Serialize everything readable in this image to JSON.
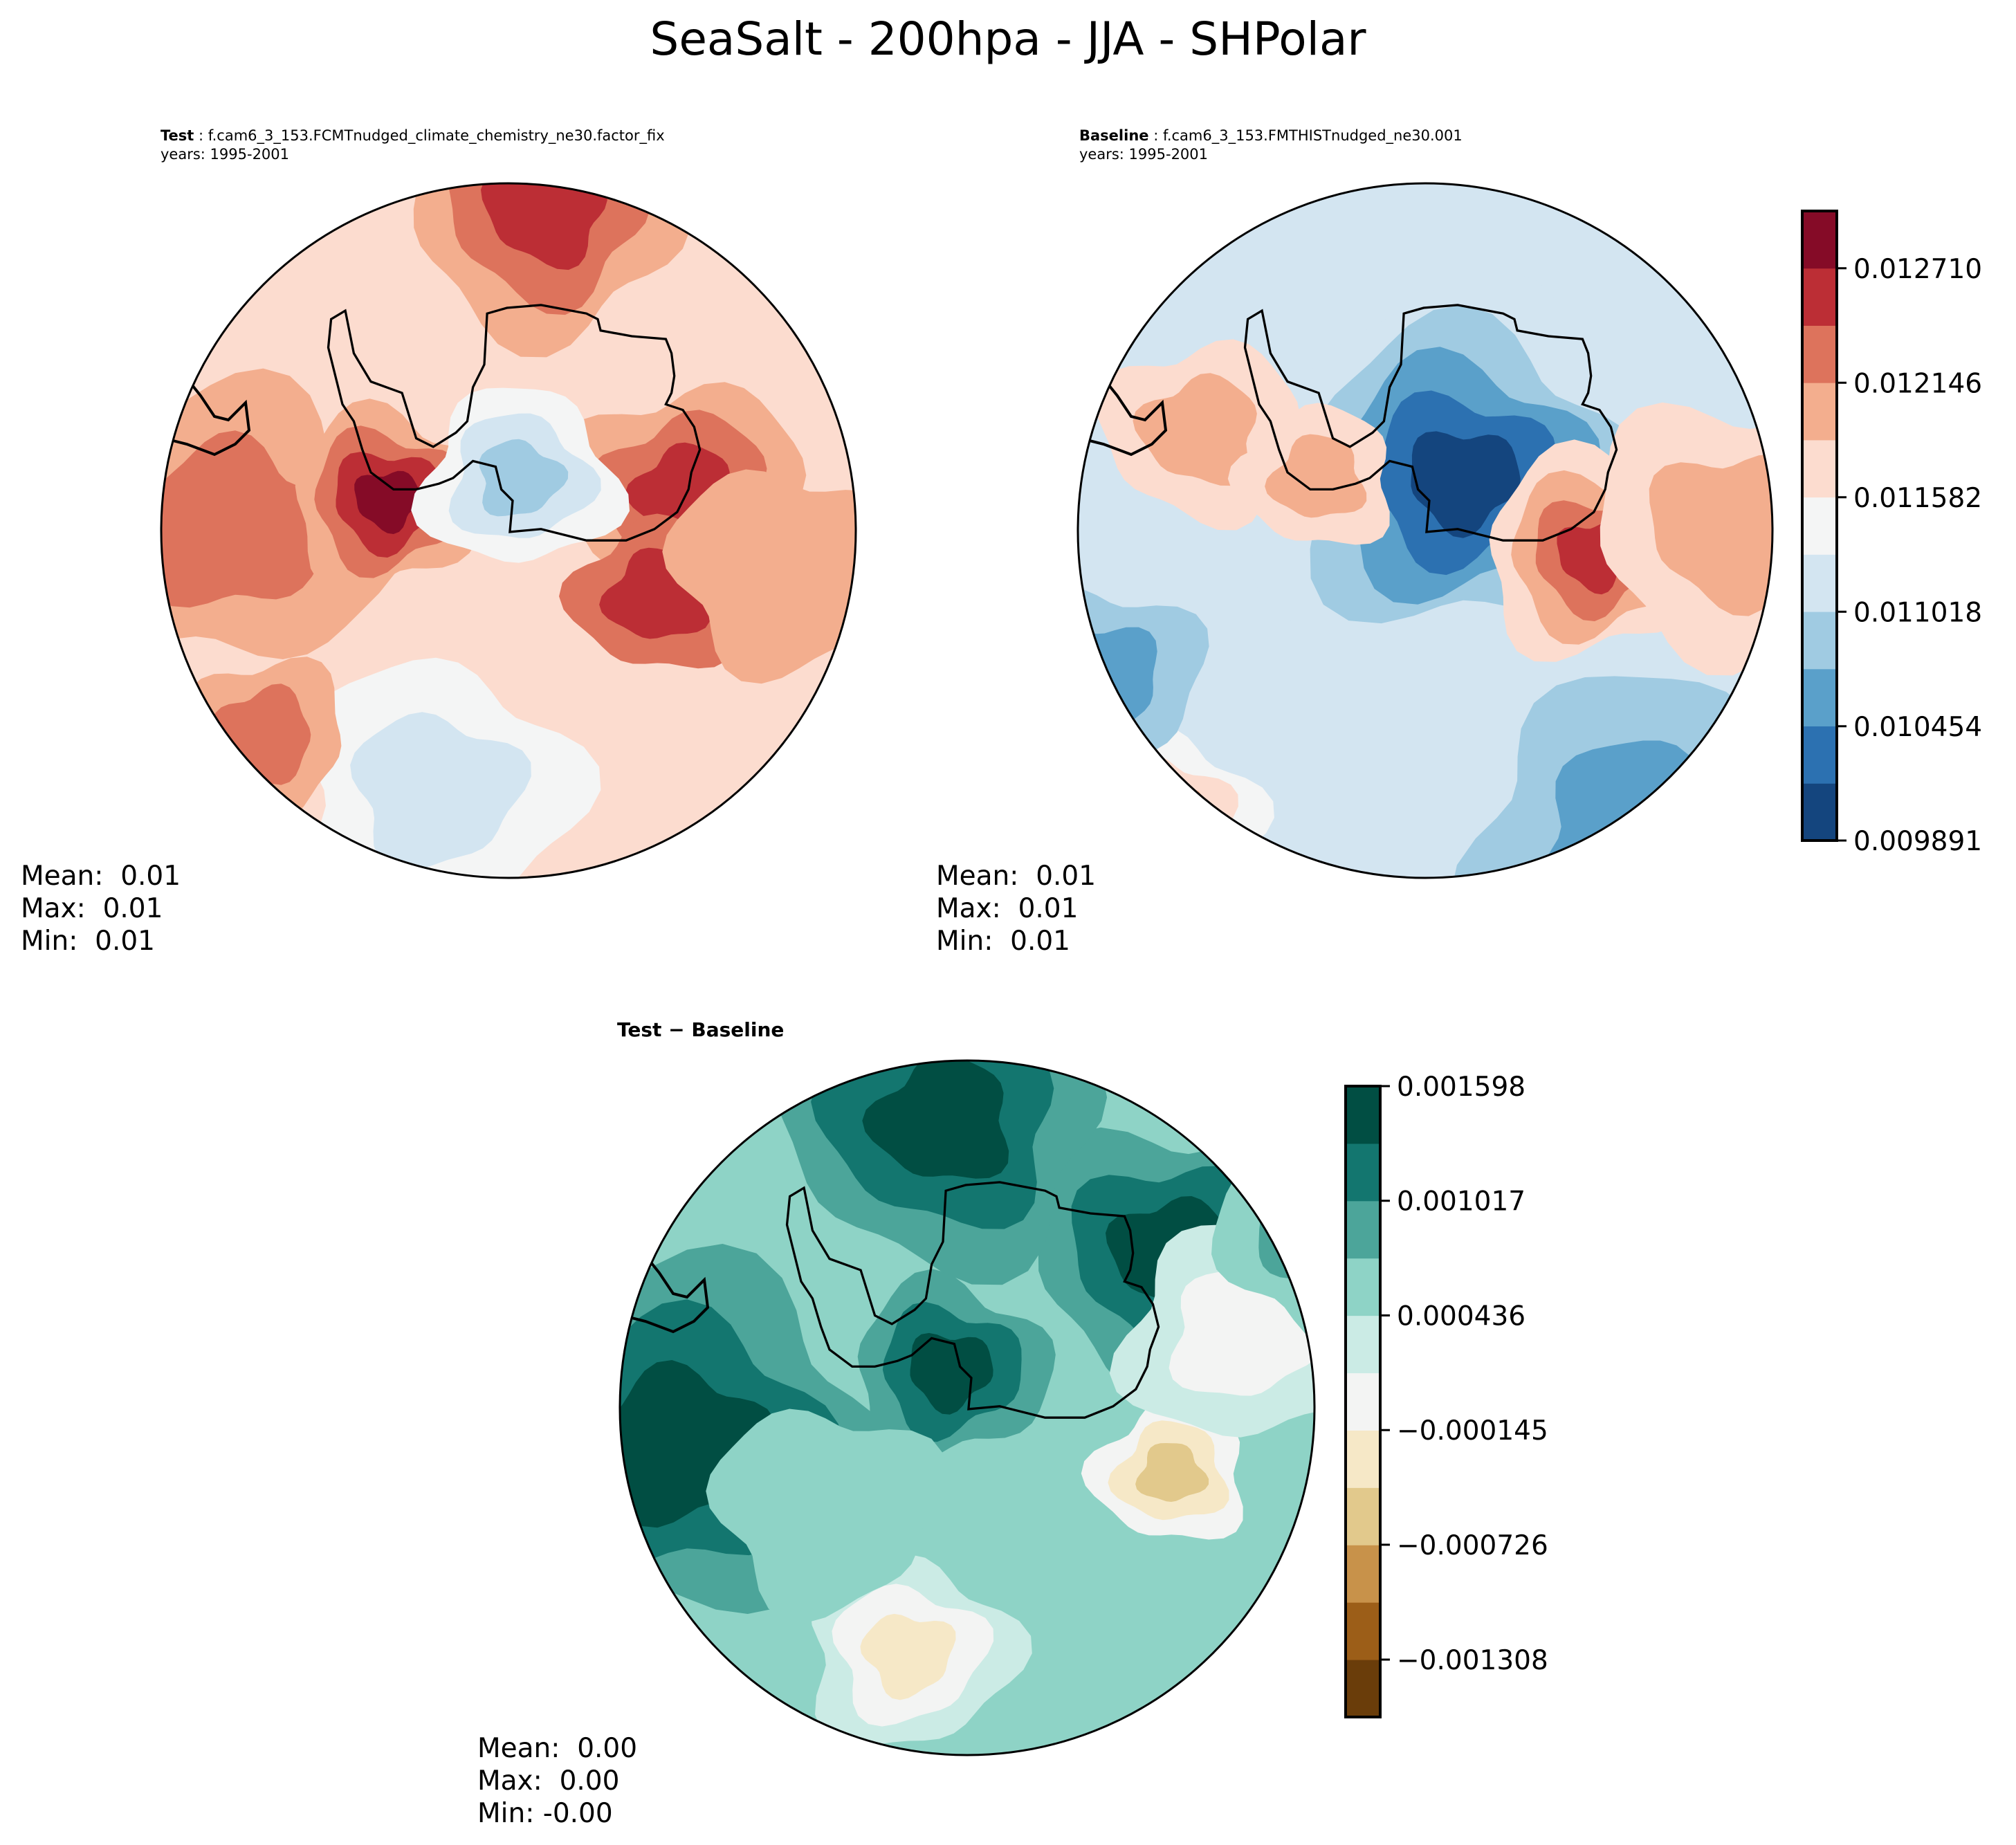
{
  "figure": {
    "title": "SeaSalt - 200hpa - JJA - SHPolar"
  },
  "chart_data": [
    {
      "type": "heatmap",
      "projection": "south-polar-stereographic",
      "panel": "test",
      "label_bold": "Test",
      "case": "f.cam6_3_153.FCMTnudged_climate_chemistry_ne30.factor_fix",
      "years": "years: 1995-2001",
      "stats": {
        "mean": "0.01",
        "max": "0.01",
        "min": "0.01"
      },
      "colormap": "RdBu_r",
      "colorbar_shared_with": "baseline",
      "features": [
        {
          "desc": "high over Weddell Sea / Antarctic Peninsula",
          "level": 10
        },
        {
          "desc": "low over West Antarctica interior",
          "level": 3
        },
        {
          "desc": "high over East Antarctica coast (Indian sector)",
          "level": 8
        },
        {
          "desc": "high over East Antarctica (Pacific side)",
          "level": 8
        },
        {
          "desc": "high in South Atlantic/Indian ocean band",
          "level": 7
        }
      ]
    },
    {
      "type": "heatmap",
      "projection": "south-polar-stereographic",
      "panel": "baseline",
      "label_bold": "Baseline",
      "case": "f.cam6_3_153.FMTHISTnudged_ne30.001",
      "years": "years: 1995-2001",
      "stats": {
        "mean": "0.01",
        "max": "0.01",
        "min": "0.01"
      },
      "colormap": "RdBu_r",
      "colorbar": {
        "ticks": [
          "0.012710",
          "0.012146",
          "0.011582",
          "0.011018",
          "0.010454",
          "0.009891"
        ],
        "tick_values": [
          0.01271,
          0.012146,
          0.011582,
          0.011018,
          0.010454,
          0.009891
        ],
        "range": [
          0.009891,
          0.012992
        ],
        "levels": 11,
        "colors": [
          "#14457e",
          "#2c71b1",
          "#5aa0ca",
          "#a0cbe2",
          "#d3e5f1",
          "#f4f5f5",
          "#fcdccf",
          "#f3ae8e",
          "#dd735c",
          "#bc2e35",
          "#850b27"
        ]
      },
      "features": [
        {
          "desc": "strong low over East Antarctica interior",
          "level": 0
        },
        {
          "desc": "high near East Antarctic coast",
          "level": 9
        },
        {
          "desc": "weak highs near peninsula and Indian sector",
          "level": 7
        }
      ]
    },
    {
      "type": "heatmap",
      "projection": "south-polar-stereographic",
      "panel": "difference",
      "title": "Test − Baseline",
      "stats": {
        "mean": "0.00",
        "max": "0.00",
        "min": "-0.00"
      },
      "colormap": "BrBG",
      "colorbar": {
        "ticks": [
          "0.001598",
          "0.001017",
          "0.000436",
          "−0.000145",
          "−0.000726",
          "−0.001308"
        ],
        "tick_values": [
          0.001598,
          0.001017,
          0.000436,
          -0.000145,
          -0.000726,
          -0.001308
        ],
        "range": [
          -0.001599,
          0.001598
        ],
        "levels": 11,
        "colors": [
          "#6a3d0a",
          "#9c5e18",
          "#c8924a",
          "#e2c98c",
          "#f6e8c7",
          "#f3f4f3",
          "#cbebe5",
          "#8ed3c6",
          "#4ca59a",
          "#13766f",
          "#014e43"
        ]
      },
      "features": [
        {
          "desc": "strong positive over East Antarctica interior",
          "level": 10
        },
        {
          "desc": "strong positive near Weddell Sea",
          "level": 10
        },
        {
          "desc": "positive band in South Atlantic",
          "level": 9
        },
        {
          "desc": "weak negative off East Antarctic coast",
          "level": 3
        }
      ]
    }
  ]
}
